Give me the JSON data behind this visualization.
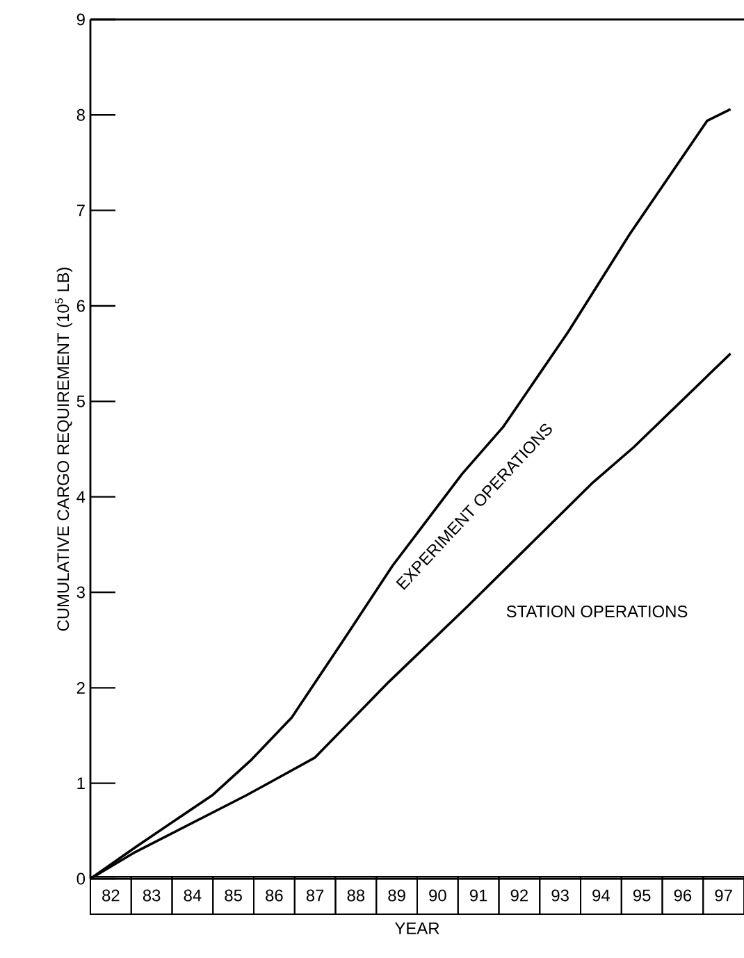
{
  "chart_data": {
    "type": "line",
    "xlabel": "YEAR",
    "ylabel": "CUMULATIVE CARGO REQUIREMENT (10$^{5}$ LB)",
    "xlim": [
      81.5,
      97.5
    ],
    "ylim": [
      0,
      9
    ],
    "yticks": [
      0,
      1,
      2,
      3,
      4,
      5,
      6,
      7,
      8,
      9
    ],
    "xticks": [
      82,
      83,
      84,
      85,
      86,
      87,
      88,
      89,
      90,
      91,
      92,
      93,
      94,
      95,
      96,
      97
    ],
    "legend": false,
    "marker": "none",
    "line_style": "solid",
    "series": [
      {
        "name": "EXPERIMENT OPERATIONS",
        "color": "#000000",
        "x": [
          81.5,
          82.6,
          84.5,
          85.45,
          86.43,
          87.65,
          88.9,
          90.6,
          91.6,
          93.2,
          94.7,
          96.6,
          97.17
        ],
        "values": [
          0,
          0.33,
          0.88,
          1.25,
          1.69,
          2.47,
          3.28,
          4.24,
          4.73,
          5.73,
          6.75,
          7.94,
          8.06
        ]
      },
      {
        "name": "STATION OPERATIONS",
        "color": "#000000",
        "x": [
          81.5,
          82.6,
          85.3,
          85.9,
          87.0,
          88.8,
          90.7,
          93.8,
          94.8,
          97.17
        ],
        "values": [
          0,
          0.28,
          0.87,
          1.01,
          1.27,
          2.06,
          2.84,
          4.15,
          4.52,
          5.5
        ]
      }
    ]
  }
}
